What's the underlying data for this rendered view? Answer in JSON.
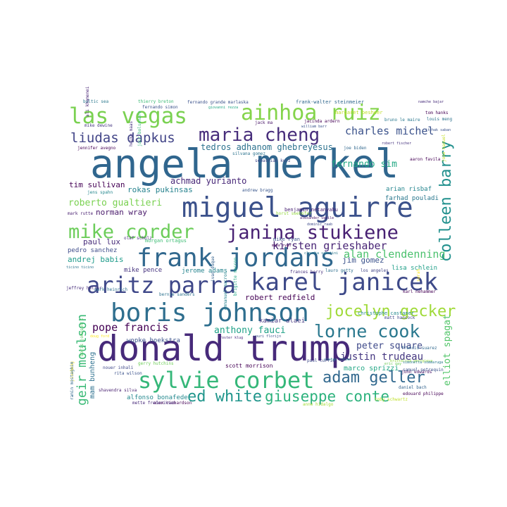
{
  "words": [
    {
      "text": "angela merkel",
      "color": "#30668e"
    },
    {
      "text": "donald trump",
      "color": "#472a7a"
    },
    {
      "text": "miguel aguirre",
      "color": "#3b518b"
    },
    {
      "text": "frank jordans",
      "color": "#31688e"
    },
    {
      "text": "karel janicek",
      "color": "#3e4a89"
    },
    {
      "text": "boris johnson",
      "color": "#2e6e8e"
    },
    {
      "text": "sylvie corbet",
      "color": "#35b779"
    },
    {
      "text": "janina stukiene",
      "color": "#482173"
    },
    {
      "text": "mike corder",
      "color": "#6ccd5a"
    },
    {
      "text": "las vegas",
      "color": "#7ad151"
    },
    {
      "text": "ainhoa ruiz",
      "color": "#84d44b"
    },
    {
      "text": "aritz parra",
      "color": "#3f4889"
    },
    {
      "text": "maria cheng",
      "color": "#472d7b"
    },
    {
      "text": "lorne cook",
      "color": "#2a788e"
    },
    {
      "text": "colleen barry",
      "color": "#21908d"
    },
    {
      "text": "liudas dapkus",
      "color": "#414487"
    },
    {
      "text": "jocelyn gecker",
      "color": "#a0da39"
    },
    {
      "text": "adam geller",
      "color": "#31688e"
    },
    {
      "text": "giuseppe conte",
      "color": "#2db27d"
    },
    {
      "text": "ed white",
      "color": "#1f958b"
    },
    {
      "text": "geir moulson",
      "color": "#3aba76"
    },
    {
      "text": "pope francis",
      "color": "#440154"
    },
    {
      "text": "charles michel",
      "color": "#3b528b"
    },
    {
      "text": "kirsten grieshaber",
      "color": "#482475"
    },
    {
      "text": "alan clendenning",
      "color": "#4ac16d"
    },
    {
      "text": "fernando sim",
      "color": "#22a884"
    },
    {
      "text": "justin trudeau",
      "color": "#453781"
    },
    {
      "text": "peter square",
      "color": "#3e4989"
    },
    {
      "text": "elliot spagat",
      "color": "#52c569"
    },
    {
      "text": "robert redfield",
      "color": "#440154"
    },
    {
      "text": "anthony fauci",
      "color": "#1fa187"
    },
    {
      "text": "mike pence",
      "color": "#46337f"
    },
    {
      "text": "roberto gualtieri",
      "color": "#7ad151"
    },
    {
      "text": "tedros adhanom ghebreyesus",
      "color": "#2c728e"
    },
    {
      "text": "achmad yurianto",
      "color": "#482878"
    },
    {
      "text": "rokas pukinsas",
      "color": "#26828e"
    },
    {
      "text": "norman wray",
      "color": "#48186a"
    },
    {
      "text": "paul lux",
      "color": "#472c7a"
    },
    {
      "text": "andrej babis",
      "color": "#1e9b8a"
    },
    {
      "text": "jim gomez",
      "color": "#3b528b"
    },
    {
      "text": "tim sullivan",
      "color": "#440154"
    },
    {
      "text": "arian risbaf",
      "color": "#25858e"
    },
    {
      "text": "farhad pouladi",
      "color": "#2a788e"
    },
    {
      "text": "marco sprizzi",
      "color": "#22a785"
    },
    {
      "text": "mam bunheng",
      "color": "#2d708e"
    },
    {
      "text": "wopke hoekstra",
      "color": "#3b528b"
    },
    {
      "text": "kamiar alaei",
      "color": "#453882"
    },
    {
      "text": "jerome adams",
      "color": "#25848e"
    },
    {
      "text": "pedro sanchez",
      "color": "#3e4c8a"
    },
    {
      "text": "lisa schlein",
      "color": "#1f9f88"
    },
    {
      "text": "scott morrison",
      "color": "#440154"
    },
    {
      "text": "alfonso bonafede",
      "color": "#23888e"
    },
    {
      "text": "margaret besheer",
      "color": "#bddf26"
    },
    {
      "text": "benjamin netanyahu",
      "color": "#482173"
    },
    {
      "text": "mark rutte",
      "color": "#481f70"
    },
    {
      "text": "christophe castaner",
      "color": "#23898e"
    },
    {
      "text": "matt hancock",
      "color": "#404588"
    },
    {
      "text": "morgan ortagus",
      "color": "#3dbc74"
    },
    {
      "text": "jens spahn",
      "color": "#24878e"
    },
    {
      "text": "horst seehofer",
      "color": "#95d840"
    },
    {
      "text": "emmanuel macron",
      "color": "#26828e"
    },
    {
      "text": "mike ryan",
      "color": "#3b528b"
    },
    {
      "text": "frances berry",
      "color": "#46327e"
    },
    {
      "text": "lauro getty",
      "color": "#2e6f8e"
    },
    {
      "text": "los angeles",
      "color": "#414487"
    },
    {
      "text": "toby schwartz",
      "color": "#bddf26"
    },
    {
      "text": "tom hanks",
      "color": "#440154"
    },
    {
      "text": "ramin mostaghim",
      "color": "#31688e"
    },
    {
      "text": "boris johnson's",
      "color": "#5ec962"
    },
    {
      "text": "jeffrey heller",
      "color": "#472d7b"
    },
    {
      "text": "jack ma",
      "color": "#481668"
    },
    {
      "text": "andrew bragg",
      "color": "#39568c"
    },
    {
      "text": "bernie sanders",
      "color": "#2c728e"
    },
    {
      "text": "alex richardson",
      "color": "#440154"
    },
    {
      "text": "anne hidalgo",
      "color": "#a5db36"
    },
    {
      "text": "daniel bach",
      "color": "#33638d"
    },
    {
      "text": "paul currie",
      "color": "#3e4a89"
    },
    {
      "text": "silvana gomez",
      "color": "#2c738e"
    },
    {
      "text": "fernando simon",
      "color": "#3a538b"
    },
    {
      "text": "john edwards",
      "color": "#471063"
    },
    {
      "text": "giovanni rezza",
      "color": "#22a884"
    },
    {
      "text": "ivan duque",
      "color": "#34618d"
    },
    {
      "text": "kristalina georgieva",
      "color": "#90d743"
    },
    {
      "text": "frank-walter steinmeier",
      "color": "#31688e"
    },
    {
      "text": "baltic sea",
      "color": "#2a788e"
    },
    {
      "text": "thierry breton",
      "color": "#3bbb75"
    },
    {
      "text": "fernando grande marlaska",
      "color": "#3b528b"
    },
    {
      "text": "heiko maas",
      "color": "#46337f"
    },
    {
      "text": "ali khamenei",
      "color": "#482475"
    },
    {
      "text": "mike dewine",
      "color": "#453781"
    },
    {
      "text": "jennifer avegno",
      "color": "#440154"
    },
    {
      "text": "jair bolsonaro",
      "color": "#35b779"
    },
    {
      "text": "jose manuel",
      "color": "#c2df23"
    },
    {
      "text": "stefan lofven",
      "color": "#2a788e"
    },
    {
      "text": "mette frederiksen",
      "color": "#472a7a"
    },
    {
      "text": "sebastian kurz",
      "color": "#3f4889"
    },
    {
      "text": "mark heinrich",
      "color": "#2d708e"
    },
    {
      "text": "rita wilson",
      "color": "#3b528b"
    },
    {
      "text": "gerry hutchins",
      "color": "#6ece58"
    },
    {
      "text": "olaf scholz",
      "color": "#472d7b"
    },
    {
      "text": "nouer inhali",
      "color": "#3f4788"
    },
    {
      "text": "shavendra silva",
      "color": "#481f70"
    },
    {
      "text": "ticino ticino",
      "color": "#2b758e"
    },
    {
      "text": "jinsheng",
      "color": "#fde725"
    },
    {
      "text": "jacinda ardern",
      "color": "#440154"
    },
    {
      "text": "william barr",
      "color": "#3b528b"
    },
    {
      "text": "joe biden",
      "color": "#31688e"
    },
    {
      "text": "robert fischer",
      "color": "#46337f"
    },
    {
      "text": "bruno le maire",
      "color": "#2a788e"
    },
    {
      "text": "aaron favila",
      "color": "#440154"
    },
    {
      "text": "itzhak saban",
      "color": "#3b528b"
    },
    {
      "text": "louis meng",
      "color": "#2c728e"
    },
    {
      "text": "namche bajar",
      "color": "#472d7b"
    },
    {
      "text": "sarah",
      "color": "#fde725"
    },
    {
      "text": "alexander vasile",
      "color": "#48186a"
    },
    {
      "text": "dominic raab",
      "color": "#3e4a89"
    },
    {
      "text": "claudia sabatini",
      "color": "#2a788e"
    },
    {
      "text": "edouard philippe",
      "color": "#440154"
    },
    {
      "text": "samuel petrequin",
      "color": "#3b528b"
    },
    {
      "text": "karl nehammer",
      "color": "#440154"
    },
    {
      "text": "francis suarez",
      "color": "#31688e"
    },
    {
      "text": "eric gay",
      "color": "#6ece58"
    },
    {
      "text": "brigitte macron",
      "color": "#22a884"
    },
    {
      "text": "mike ryan",
      "color": "#440154"
    },
    {
      "text": "doug ford",
      "color": "#fde725"
    },
    {
      "text": "foster klug",
      "color": "#472a7a"
    },
    {
      "text": "youri florijn",
      "color": "#3b528b"
    },
    {
      "text": "simonetta sommaruga",
      "color": "#2a788e"
    }
  ]
}
